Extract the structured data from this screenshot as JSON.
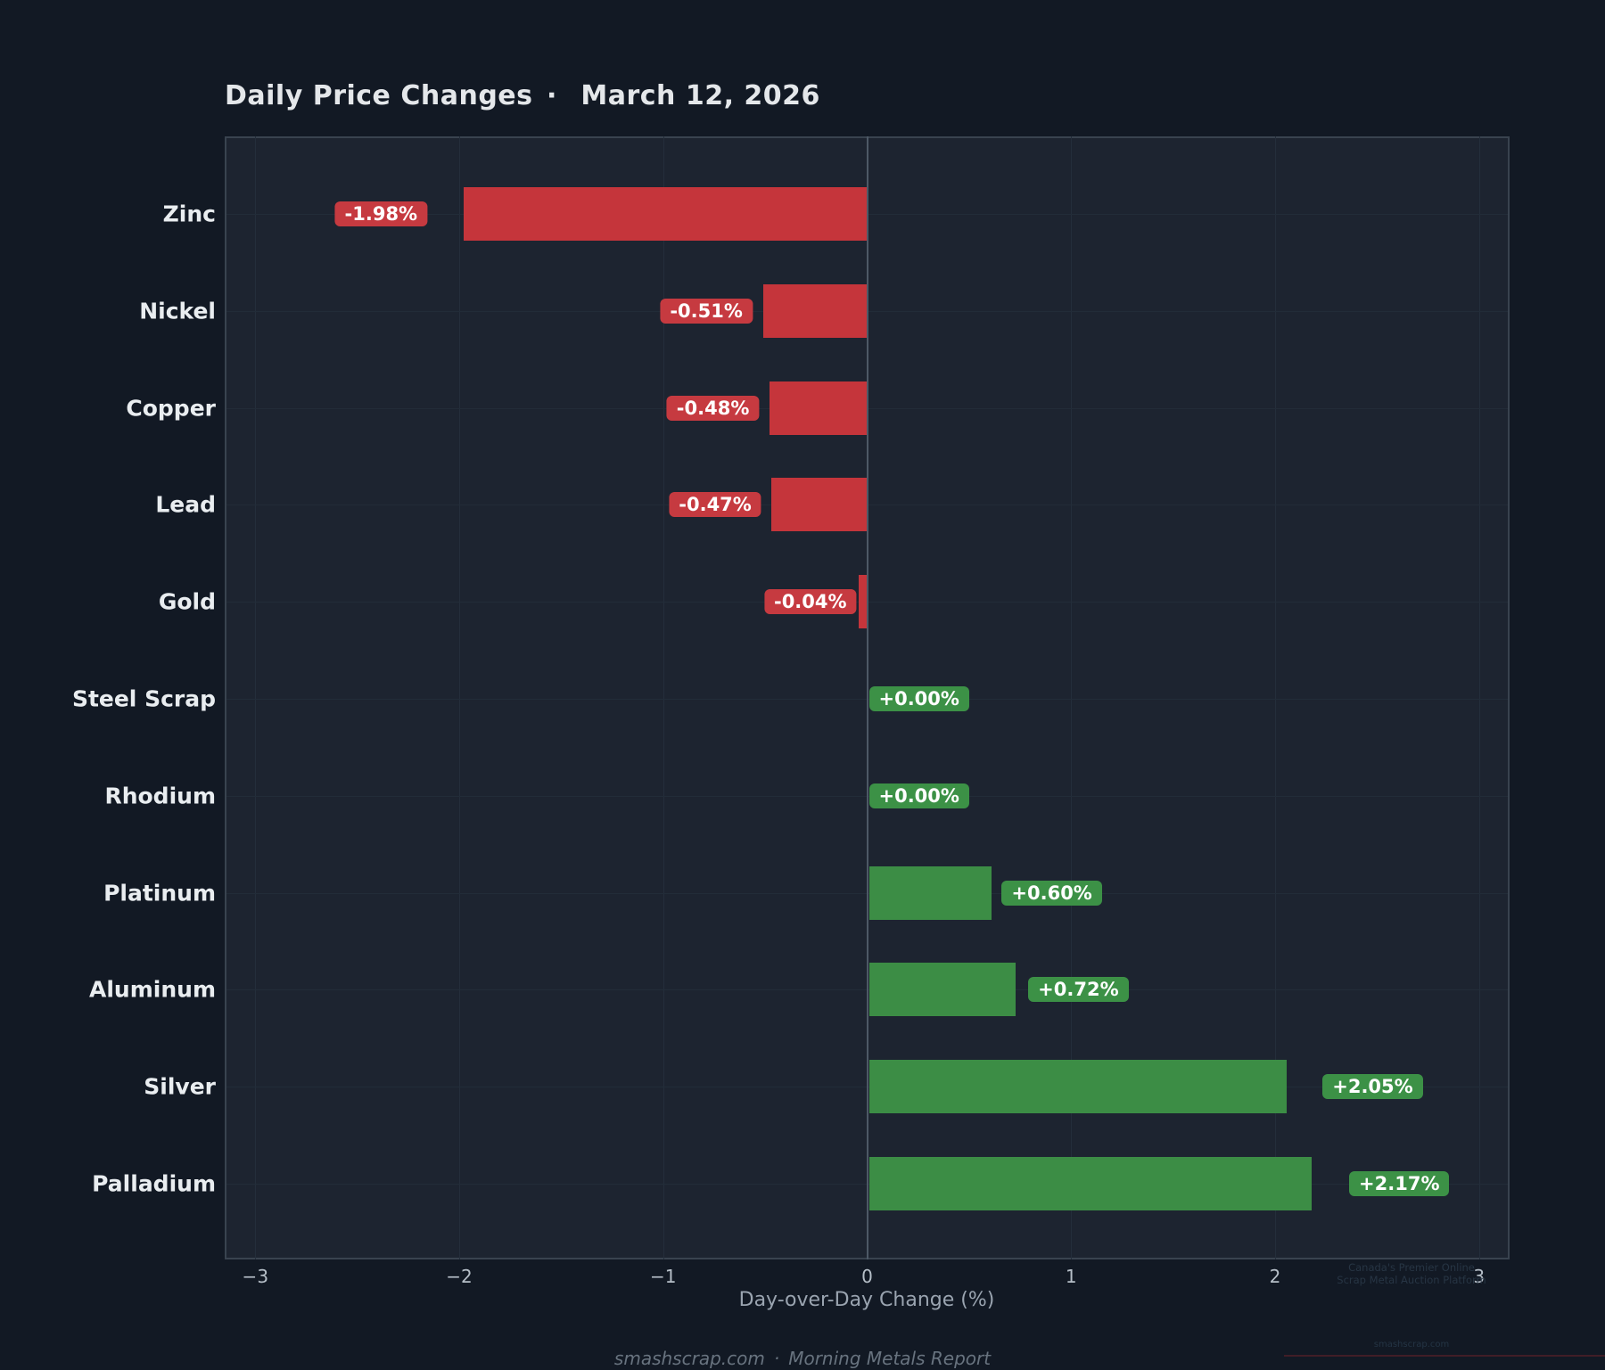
{
  "title": "Daily Price Changes ·  March 12, 2026",
  "chart_data": {
    "type": "bar",
    "orientation": "horizontal",
    "categories": [
      "Zinc",
      "Nickel",
      "Copper",
      "Lead",
      "Gold",
      "Steel Scrap",
      "Rhodium",
      "Platinum",
      "Aluminum",
      "Silver",
      "Palladium"
    ],
    "values": [
      -1.98,
      -0.51,
      -0.48,
      -0.47,
      -0.04,
      0.0,
      0.0,
      0.6,
      0.72,
      2.05,
      2.17
    ],
    "value_labels": [
      "-1.98%",
      "-0.51%",
      "-0.48%",
      "-0.47%",
      "-0.04%",
      "+0.00%",
      "+0.00%",
      "+0.60%",
      "+0.72%",
      "+2.05%",
      "+2.17%"
    ],
    "title": "Daily Price Changes · March 12, 2026",
    "xlabel": "Day-over-Day Change (%)",
    "ylabel": "",
    "xlim": [
      -3.15,
      3.15
    ],
    "xticks": [
      -3,
      -2,
      -1,
      0,
      1,
      2,
      3
    ],
    "xtick_labels": [
      "−3",
      "−2",
      "−1",
      "0",
      "1",
      "2",
      "3"
    ],
    "grid": true,
    "legend": "none",
    "colors": {
      "negative": "#c5353b",
      "positive": "#3c8d45",
      "negative_badge": "#c63a40",
      "positive_badge": "#3c9146"
    }
  },
  "footer": "smashscrap.com · Morning Metals Report",
  "watermark": {
    "line1": "Canada's Premier Online",
    "line2": "Scrap Metal Auction Platform",
    "domain": "smashscrap.com"
  }
}
